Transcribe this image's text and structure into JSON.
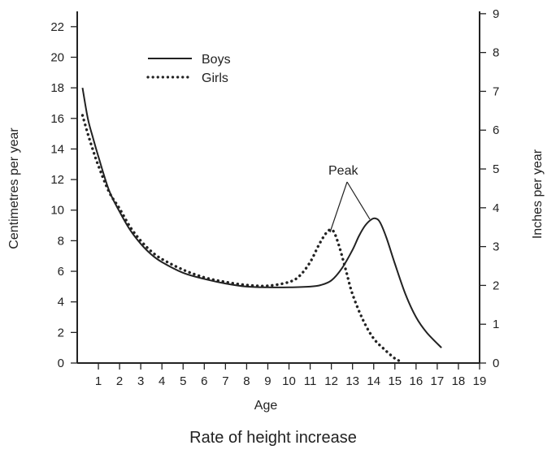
{
  "chart_data": {
    "type": "line",
    "title": "Rate of height increase",
    "xlabel": "Age",
    "ylabel_left": "Centimetres per year",
    "ylabel_right": "Inches per year",
    "xlim": [
      0,
      19
    ],
    "ylim_left": [
      0,
      23
    ],
    "ylim_right": [
      0,
      9.06
    ],
    "x_ticks": [
      "1",
      "2",
      "3",
      "4",
      "5",
      "6",
      "7",
      "8",
      "9",
      "10",
      "11",
      "12",
      "13",
      "14",
      "15",
      "16",
      "17",
      "18",
      "19"
    ],
    "y_ticks_left": [
      "0",
      "2",
      "4",
      "6",
      "8",
      "10",
      "12",
      "14",
      "16",
      "18",
      "20",
      "22"
    ],
    "y_ticks_right": [
      "0",
      "1",
      "2",
      "3",
      "4",
      "5",
      "6",
      "7",
      "8",
      "9"
    ],
    "legend": [
      "Boys",
      "Girls"
    ],
    "legend_position": "top-left",
    "annotation": {
      "text": "Peak",
      "points_to": [
        "Girls peak",
        "Boys peak"
      ]
    },
    "series": [
      {
        "name": "Boys",
        "style": "solid",
        "x": [
          0.25,
          0.5,
          0.75,
          1,
          1.5,
          2,
          2.5,
          3,
          3.5,
          4,
          5,
          6,
          7,
          8,
          9,
          10,
          11,
          11.5,
          12,
          12.5,
          13,
          13.3,
          13.6,
          13.9,
          14.1,
          14.3,
          14.6,
          15,
          15.5,
          16,
          16.5,
          17.2
        ],
        "y": [
          18,
          16,
          14.7,
          13.5,
          11.3,
          9.9,
          8.7,
          7.8,
          7.1,
          6.6,
          5.9,
          5.5,
          5.2,
          5.0,
          4.95,
          4.95,
          5.0,
          5.1,
          5.4,
          6.2,
          7.4,
          8.3,
          9.0,
          9.4,
          9.45,
          9.2,
          8.2,
          6.5,
          4.5,
          3.0,
          2.0,
          1.0
        ]
      },
      {
        "name": "Girls",
        "style": "dotted",
        "x": [
          0.25,
          0.5,
          0.75,
          1,
          1.5,
          2,
          2.5,
          3,
          3.5,
          4,
          5,
          6,
          7,
          8,
          9,
          10,
          10.5,
          11,
          11.4,
          11.7,
          11.9,
          12.0,
          12.15,
          12.4,
          12.7,
          13,
          13.5,
          14,
          14.5,
          15,
          15.3
        ],
        "y": [
          16.2,
          15,
          13.9,
          12.9,
          11.2,
          10.1,
          8.9,
          8.0,
          7.3,
          6.8,
          6.1,
          5.6,
          5.3,
          5.1,
          5.05,
          5.3,
          5.7,
          6.6,
          7.7,
          8.4,
          8.7,
          8.7,
          8.5,
          7.5,
          6.0,
          4.5,
          2.8,
          1.6,
          0.9,
          0.3,
          0.1
        ]
      }
    ]
  },
  "caption": "Rate of height increase"
}
